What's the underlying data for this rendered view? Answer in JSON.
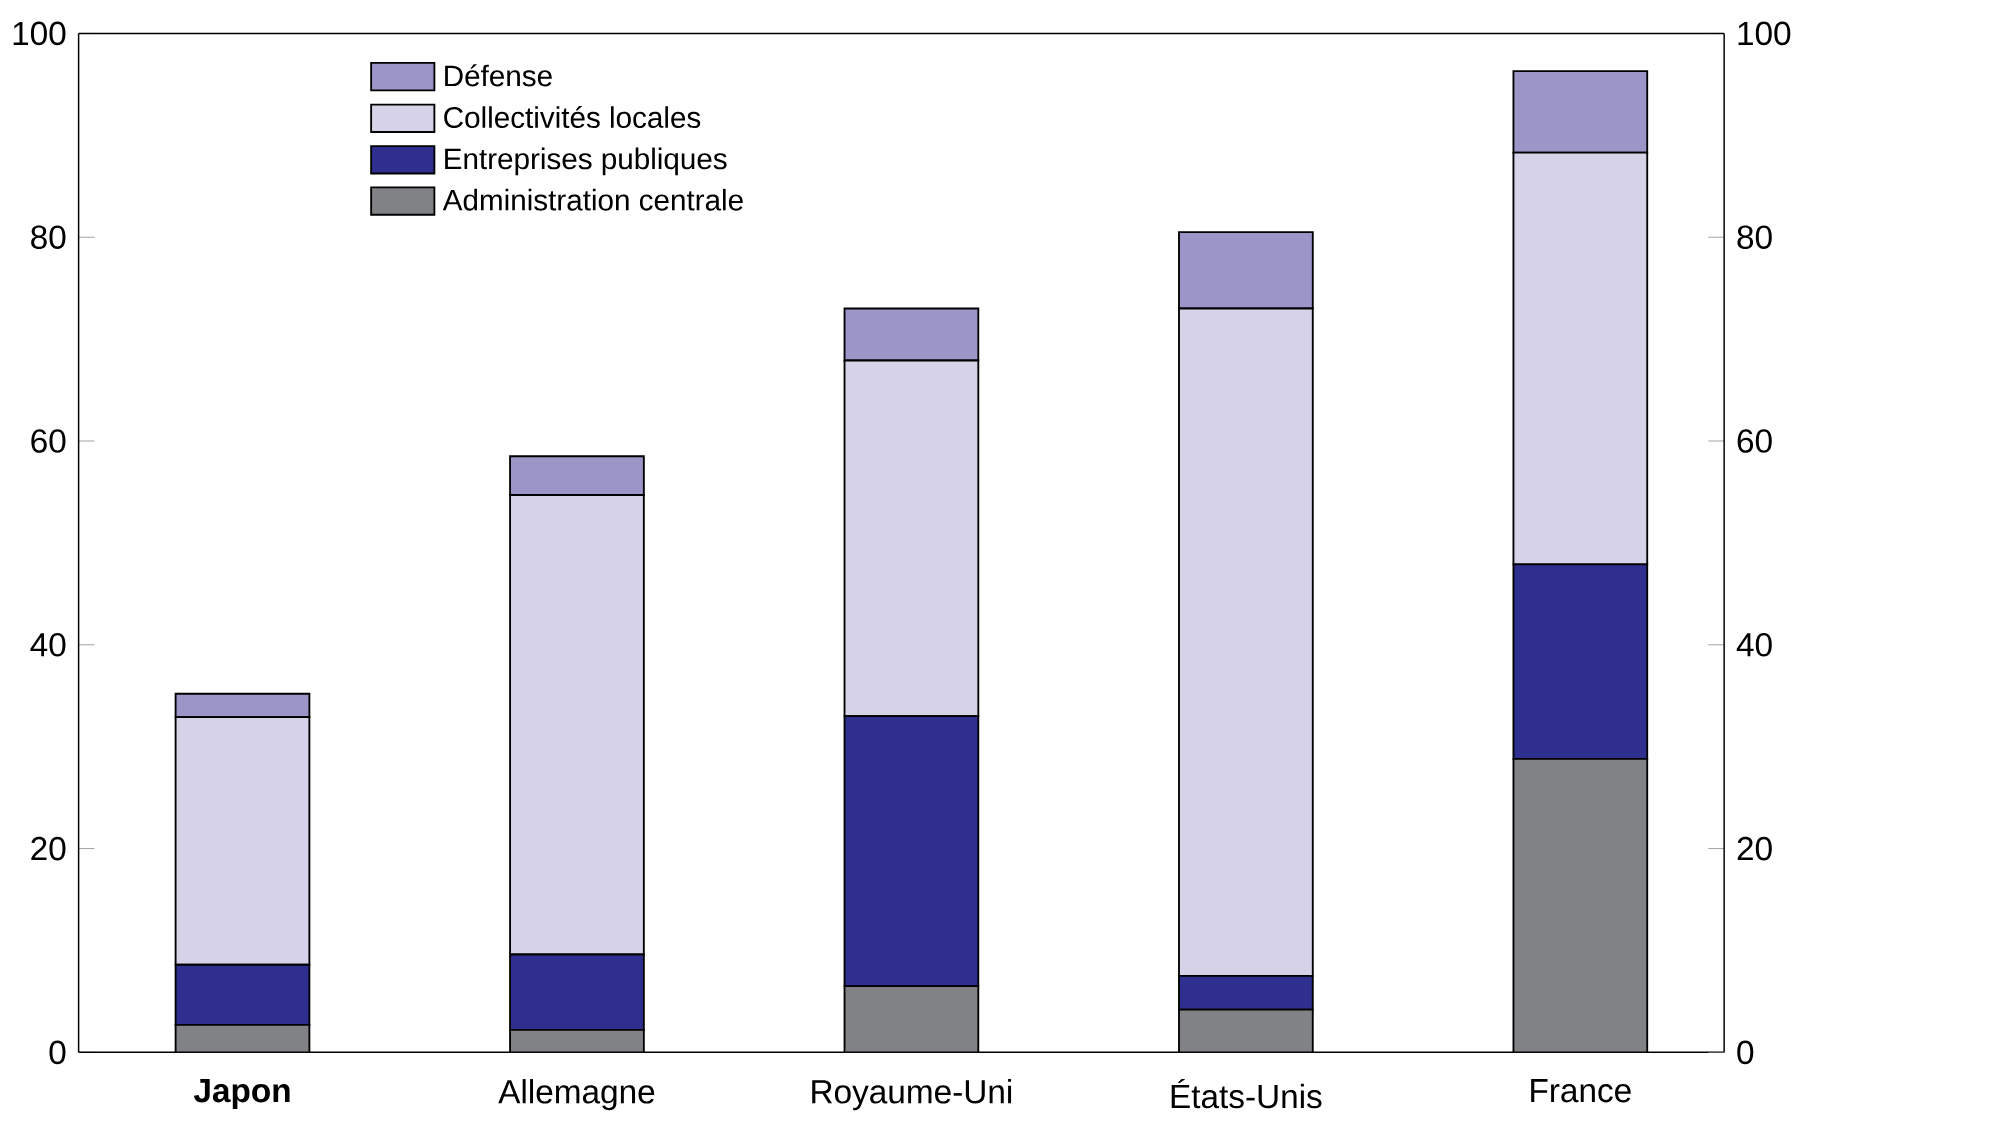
{
  "chart_data": {
    "type": "bar",
    "stacked": true,
    "categories": [
      "**Japon**",
      "Allemagne",
      "Royaume-Uni",
      "États-Unis",
      "France"
    ],
    "series": [
      {
        "name": "Administration centrale",
        "color": "#808285",
        "values": [
          2.7,
          2.2,
          6.5,
          4.2,
          28.8
        ]
      },
      {
        "name": "Entreprises publiques",
        "color": "#2e2f8f",
        "values": [
          5.9,
          7.4,
          26.5,
          3.3,
          19.1
        ]
      },
      {
        "name": "Collectivités locales",
        "color": "#d6d2e8",
        "values": [
          24.3,
          45.1,
          34.9,
          65.5,
          40.4
        ]
      },
      {
        "name": "Défense",
        "color": "#9c96c8",
        "values": [
          2.3,
          3.8,
          5.1,
          7.5,
          8.0
        ]
      }
    ],
    "ylim": [
      0,
      100
    ],
    "yticks": [
      0,
      20,
      40,
      60,
      80,
      100
    ],
    "y2lim": [
      0,
      100
    ],
    "y2ticks": [
      0,
      20,
      40,
      60,
      80,
      100
    ],
    "legend": "top left"
  }
}
